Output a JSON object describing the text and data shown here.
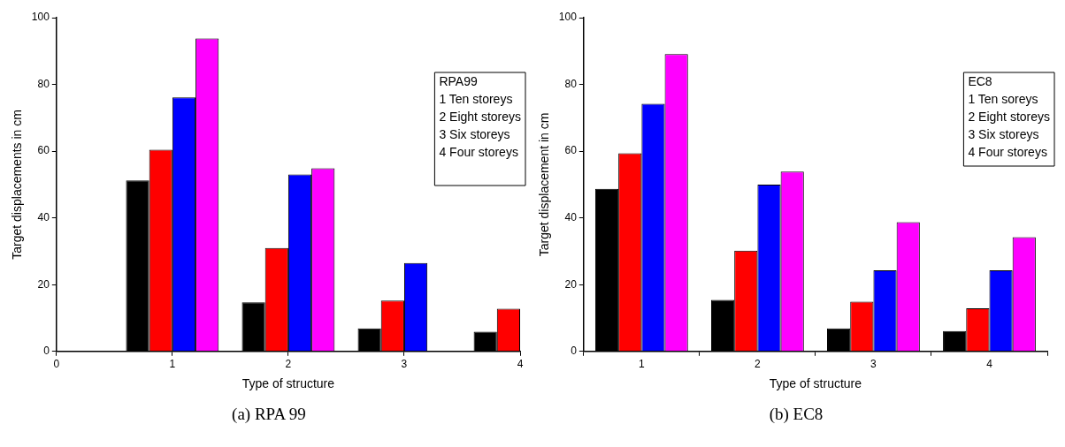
{
  "chart_data": [
    {
      "type": "bar",
      "title": "(a) RPA 99",
      "xlabel": "Type of structure",
      "ylabel": "Target displacements in cm",
      "x": [
        1,
        2,
        3,
        4
      ],
      "xlim": [
        0,
        4
      ],
      "xticks": [
        0,
        1,
        2,
        3,
        4
      ],
      "ylim": [
        0,
        100
      ],
      "yticks": [
        0,
        20,
        40,
        60,
        80,
        100
      ],
      "grid": false,
      "annotations": [
        "RPA99",
        "1 Ten storeys",
        "2 Eight storeys",
        "3 Six storeys",
        "4 Four storeys"
      ],
      "series": [
        {
          "color": "#000000",
          "values": [
            51.2,
            14.7,
            6.9,
            5.9
          ]
        },
        {
          "color": "#ff0000",
          "values": [
            60.4,
            31,
            15.2,
            12.8
          ]
        },
        {
          "color": "#0000ff",
          "values": [
            76.1,
            53,
            26.5,
            null
          ]
        },
        {
          "color": "#ff00ff",
          "values": [
            93.8,
            54.9,
            null,
            null
          ]
        }
      ]
    },
    {
      "type": "bar",
      "title": "(b) EC8",
      "xlabel": "Type of structure",
      "ylabel": "Target displacement in cm",
      "categories": [
        "1",
        "2",
        "3",
        "4"
      ],
      "ylim": [
        0,
        100
      ],
      "yticks": [
        0,
        20,
        40,
        60,
        80,
        100
      ],
      "grid": false,
      "annotations": [
        "EC8",
        "1 Ten soreys",
        "2 Eight storeys",
        "3 Six storeys",
        "4 Four storeys"
      ],
      "series": [
        {
          "color": "#000000",
          "values": [
            48.7,
            15.4,
            6.9,
            6.1
          ]
        },
        {
          "color": "#ff0000",
          "values": [
            59.4,
            30.2,
            14.9,
            12.9
          ]
        },
        {
          "color": "#0000ff",
          "values": [
            74.2,
            50,
            24.3,
            24.3
          ]
        },
        {
          "color": "#ff00ff",
          "values": [
            89.1,
            53.9,
            38.7,
            34.2
          ]
        }
      ]
    }
  ]
}
